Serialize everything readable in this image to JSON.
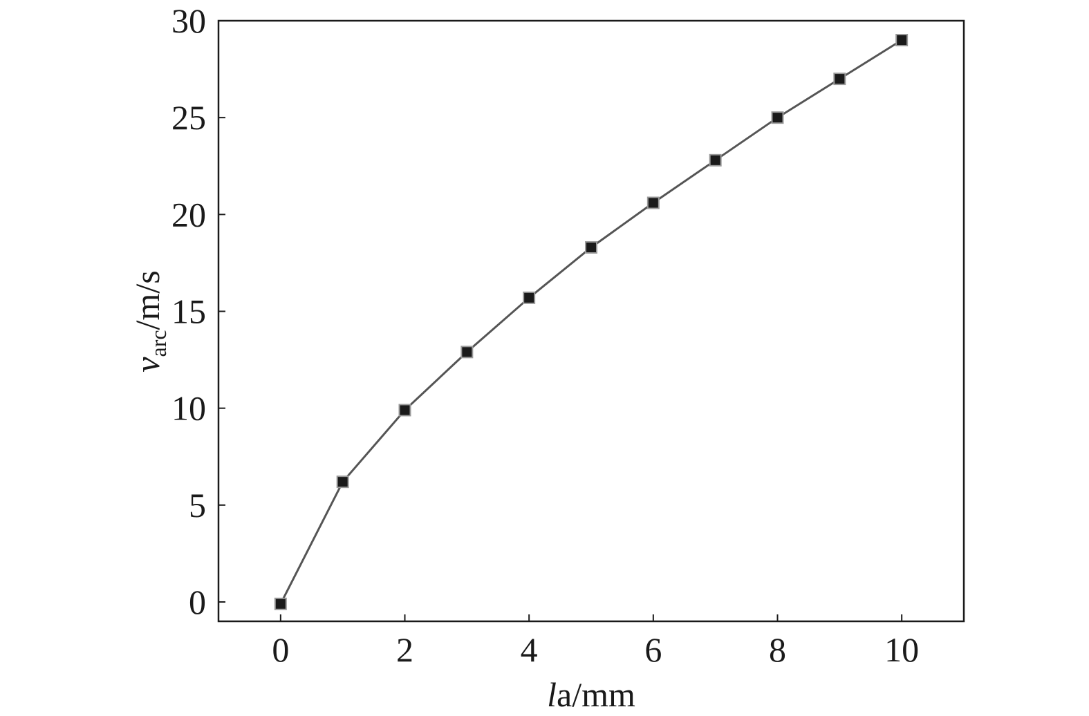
{
  "chart_data": {
    "type": "line",
    "xlabel": {
      "italic": "l",
      "rest": "a/mm"
    },
    "ylabel": {
      "italic": "v",
      "sub": "arc",
      "rest": "/m/s"
    },
    "xlim": [
      -1,
      11
    ],
    "ylim": [
      -1,
      30
    ],
    "xticks": [
      0,
      2,
      4,
      6,
      8,
      10
    ],
    "yticks": [
      0,
      5,
      10,
      15,
      20,
      25,
      30
    ],
    "grid": false,
    "series": [
      {
        "marker": "square",
        "color": "#1a1a1a",
        "x": [
          0,
          1,
          2,
          3,
          4,
          5,
          6,
          7,
          8,
          9,
          10
        ],
        "y": [
          -0.1,
          6.2,
          9.9,
          12.9,
          15.7,
          18.3,
          20.6,
          22.8,
          25.0,
          27.0,
          29.0
        ]
      }
    ]
  }
}
